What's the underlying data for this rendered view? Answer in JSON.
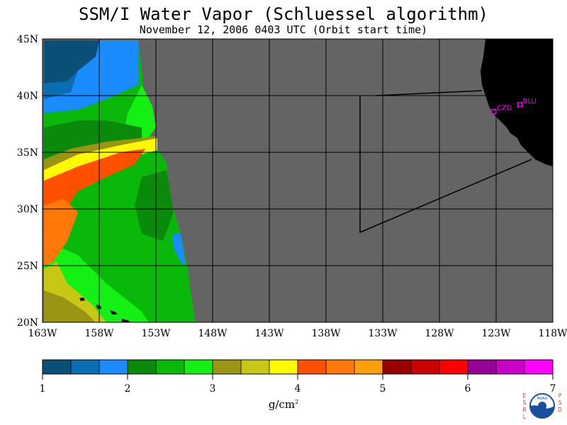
{
  "title": "SSM/I Water Vapor (Schluessel algorithm)",
  "subtitle": "November 12, 2006  0403 UTC  (Orbit start time)",
  "map": {
    "lat_labels": [
      "45N",
      "40N",
      "35N",
      "30N",
      "25N",
      "20N"
    ],
    "lon_labels": [
      "163W",
      "158W",
      "153W",
      "148W",
      "143W",
      "138W",
      "133W",
      "128W",
      "123W",
      "118W"
    ],
    "stations": [
      {
        "name": "CZD",
        "lat": 38.6,
        "lon": -123.2
      },
      {
        "name": "BLU",
        "lat": 39.2,
        "lon": -120.9
      }
    ],
    "colors": {
      "land": "#000000",
      "no_data": "#646464",
      "station": "#ff00ff"
    }
  },
  "colorbar": {
    "ticks": [
      "1",
      "2",
      "3",
      "4",
      "5",
      "6",
      "7"
    ],
    "unit": "g/cm",
    "unit_exponent": "2",
    "colors": [
      "#0a4f75",
      "#0a6eb5",
      "#1a8cff",
      "#0a8a0a",
      "#0ab80a",
      "#14f014",
      "#9a9614",
      "#c8c814",
      "#fffa00",
      "#ff5000",
      "#ff780a",
      "#ffa00a",
      "#960000",
      "#c80000",
      "#ff0000",
      "#960096",
      "#c800c8",
      "#ff00ff"
    ]
  },
  "logo": {
    "left_text": "ESRL",
    "right_text": "PSD",
    "center_text": "NOAA"
  }
}
